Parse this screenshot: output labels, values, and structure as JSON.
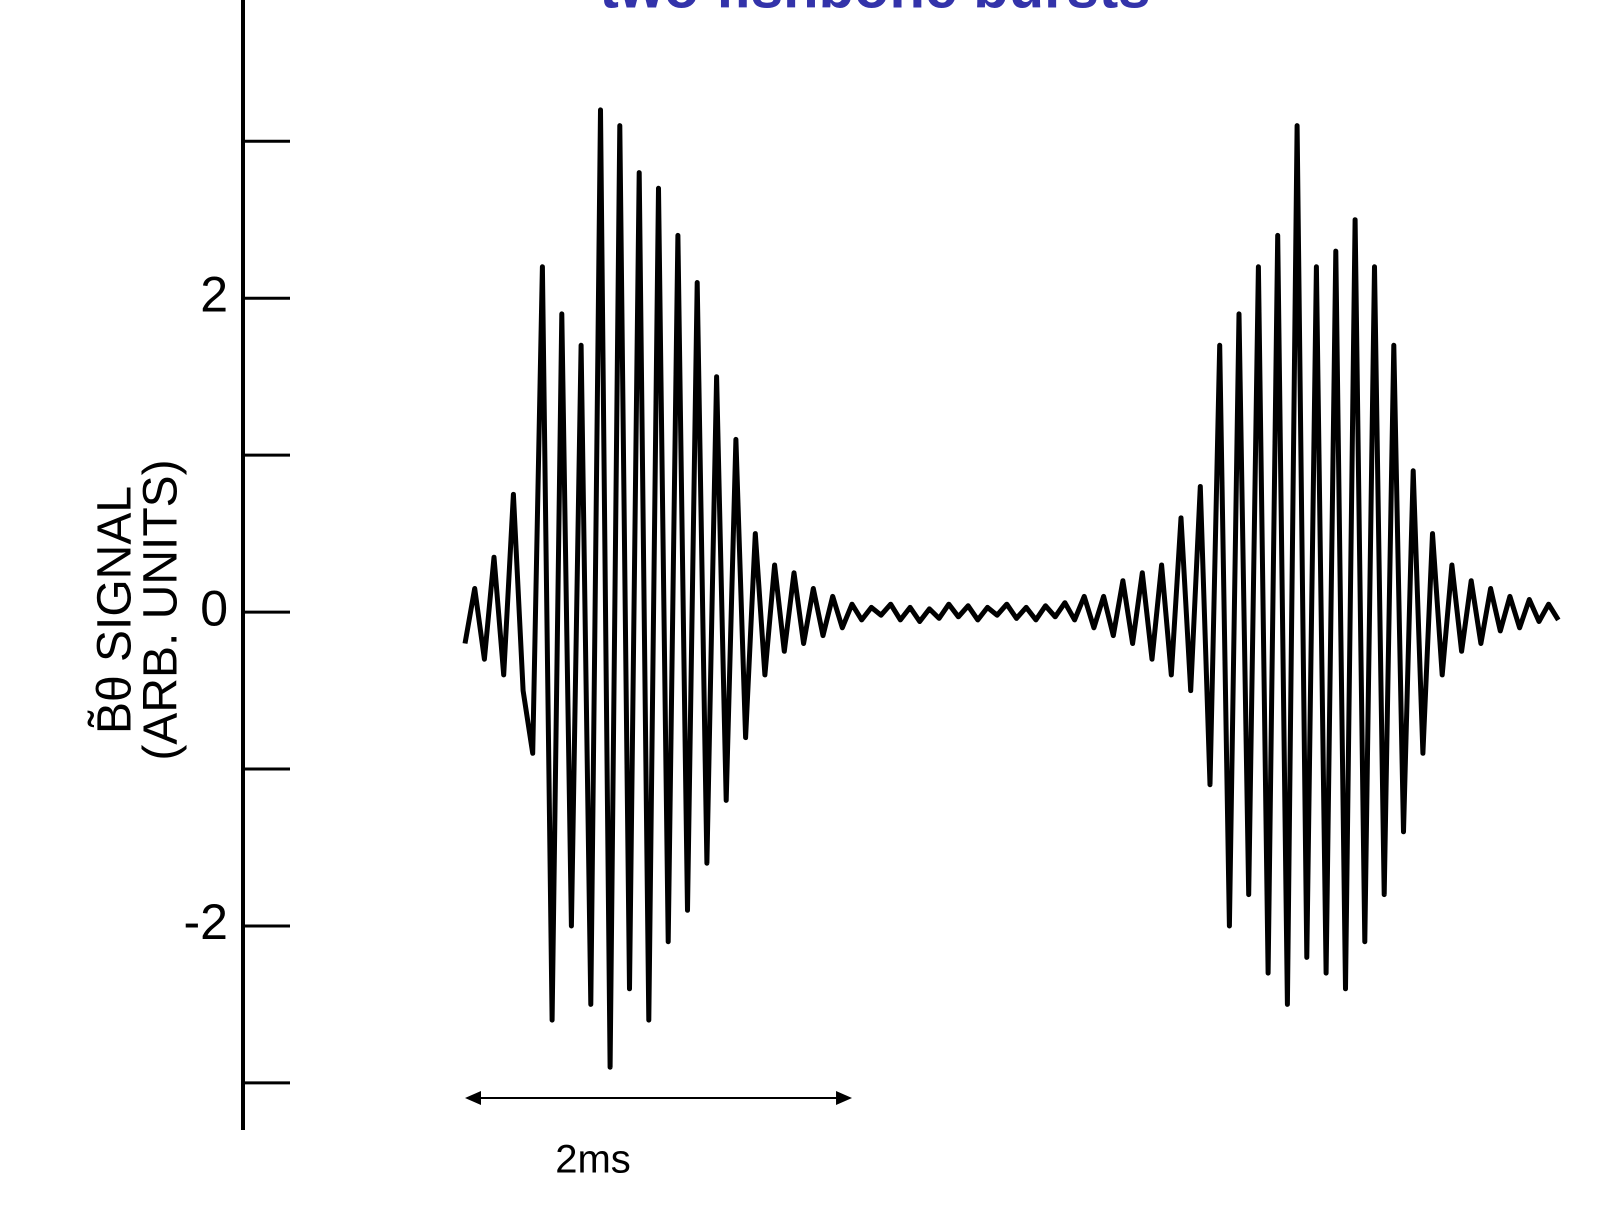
{
  "chart_data": {
    "type": "line",
    "title": "two fishbone bursts",
    "ylabel": [
      "B̃θ SIGNAL",
      "(ARB. UNITS)"
    ],
    "annotation": "2ms",
    "scale_bar": [
      0,
      2
    ],
    "xlim": [
      0,
      5.7
    ],
    "ylim": [
      -3.3,
      3.9
    ],
    "yticks": [
      -2,
      0,
      2
    ],
    "yminor_ticks": [
      -3,
      -1,
      1,
      3
    ],
    "color": "#000000",
    "title_color": "#3333aa",
    "x": [
      0,
      0.05,
      0.1,
      0.15,
      0.2,
      0.25,
      0.3,
      0.35,
      0.4,
      0.45,
      0.5,
      0.55,
      0.6,
      0.65,
      0.7,
      0.75,
      0.8,
      0.85,
      0.9,
      0.95,
      1,
      1.05,
      1.1,
      1.15,
      1.2,
      1.25,
      1.3,
      1.35,
      1.4,
      1.45,
      1.5,
      1.55,
      1.6,
      1.65,
      1.7,
      1.75,
      1.8,
      1.85,
      1.9,
      1.95,
      2,
      2.05,
      2.1,
      2.15,
      2.2,
      2.25,
      2.3,
      2.35,
      2.4,
      2.45,
      2.5,
      2.55,
      2.6,
      2.65,
      2.7,
      2.75,
      2.8,
      2.85,
      2.9,
      2.95,
      3,
      3.05,
      3.1,
      3.15,
      3.2,
      3.25,
      3.3,
      3.35,
      3.4,
      3.45,
      3.5,
      3.55,
      3.6,
      3.65,
      3.7,
      3.75,
      3.8,
      3.85,
      3.9,
      3.95,
      4,
      4.05,
      4.1,
      4.15,
      4.2,
      4.25,
      4.3,
      4.35,
      4.4,
      4.45,
      4.5,
      4.55,
      4.6,
      4.65,
      4.7,
      4.75,
      4.8,
      4.85,
      4.9,
      4.95,
      5,
      5.05,
      5.1,
      5.15,
      5.2,
      5.25,
      5.3,
      5.35,
      5.4,
      5.45,
      5.5,
      5.55,
      5.6,
      5.65
    ],
    "values": [
      -0.2,
      0.15,
      -0.3,
      0.35,
      -0.4,
      0.75,
      -0.5,
      -0.9,
      2.2,
      -2.6,
      1.9,
      -2.0,
      1.7,
      -2.5,
      3.2,
      -2.9,
      3.1,
      -2.4,
      2.8,
      -2.6,
      2.7,
      -2.1,
      2.4,
      -1.9,
      2.1,
      -1.6,
      1.5,
      -1.2,
      1.1,
      -0.8,
      0.5,
      -0.4,
      0.3,
      -0.25,
      0.25,
      -0.2,
      0.15,
      -0.15,
      0.1,
      -0.1,
      0.05,
      -0.05,
      0.03,
      -0.02,
      0.05,
      -0.05,
      0.03,
      -0.06,
      0.02,
      -0.04,
      0.05,
      -0.03,
      0.04,
      -0.05,
      0.03,
      -0.02,
      0.05,
      -0.04,
      0.03,
      -0.05,
      0.04,
      -0.03,
      0.06,
      -0.05,
      0.1,
      -0.1,
      0.1,
      -0.15,
      0.2,
      -0.2,
      0.25,
      -0.3,
      0.3,
      -0.4,
      0.6,
      -0.5,
      0.8,
      -1.1,
      1.7,
      -2.0,
      1.9,
      -1.8,
      2.2,
      -2.3,
      2.4,
      -2.5,
      3.1,
      -2.2,
      2.2,
      -2.3,
      2.3,
      -2.4,
      2.5,
      -2.1,
      2.2,
      -1.8,
      1.7,
      -1.4,
      0.9,
      -0.9,
      0.5,
      -0.4,
      0.3,
      -0.25,
      0.2,
      -0.2,
      0.15,
      -0.12,
      0.1,
      -0.1,
      0.08,
      -0.06,
      0.05,
      -0.05
    ]
  }
}
